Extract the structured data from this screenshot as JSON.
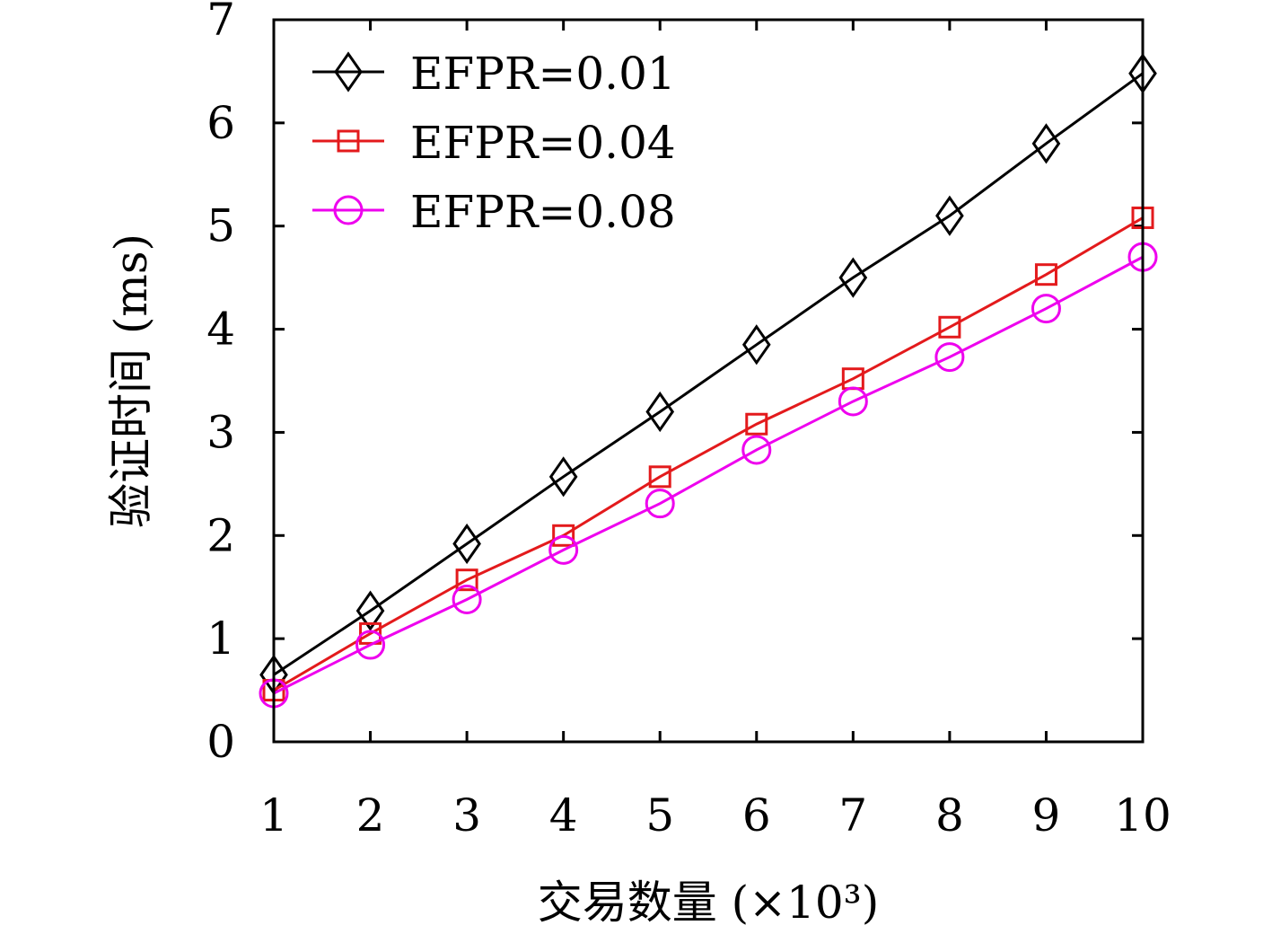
{
  "chart_data": {
    "type": "line",
    "title": "",
    "xlabel": "交易数量 (×10³)",
    "ylabel": "验证时间 (ms)",
    "x": [
      1,
      2,
      3,
      4,
      5,
      6,
      7,
      8,
      9,
      10
    ],
    "xlim": [
      1,
      10
    ],
    "ylim": [
      0,
      7
    ],
    "x_ticks": [
      "1",
      "2",
      "3",
      "4",
      "5",
      "6",
      "7",
      "8",
      "9",
      "10"
    ],
    "y_ticks": [
      "0",
      "1",
      "2",
      "3",
      "4",
      "5",
      "6",
      "7"
    ],
    "grid": false,
    "legend_position": "top-left",
    "series": [
      {
        "name": "EFPR=0.01",
        "color": "#000000",
        "marker": "diamond",
        "values": [
          0.65,
          1.27,
          1.92,
          2.57,
          3.2,
          3.85,
          4.5,
          5.1,
          5.8,
          6.48
        ]
      },
      {
        "name": "EFPR=0.04",
        "color": "#e31a1c",
        "marker": "square",
        "values": [
          0.5,
          1.05,
          1.57,
          2.0,
          2.57,
          3.08,
          3.52,
          4.02,
          4.53,
          5.08
        ]
      },
      {
        "name": "EFPR=0.08",
        "color": "#ee00ee",
        "marker": "circle",
        "values": [
          0.47,
          0.94,
          1.38,
          1.86,
          2.31,
          2.83,
          3.3,
          3.73,
          4.2,
          4.7
        ]
      }
    ]
  }
}
